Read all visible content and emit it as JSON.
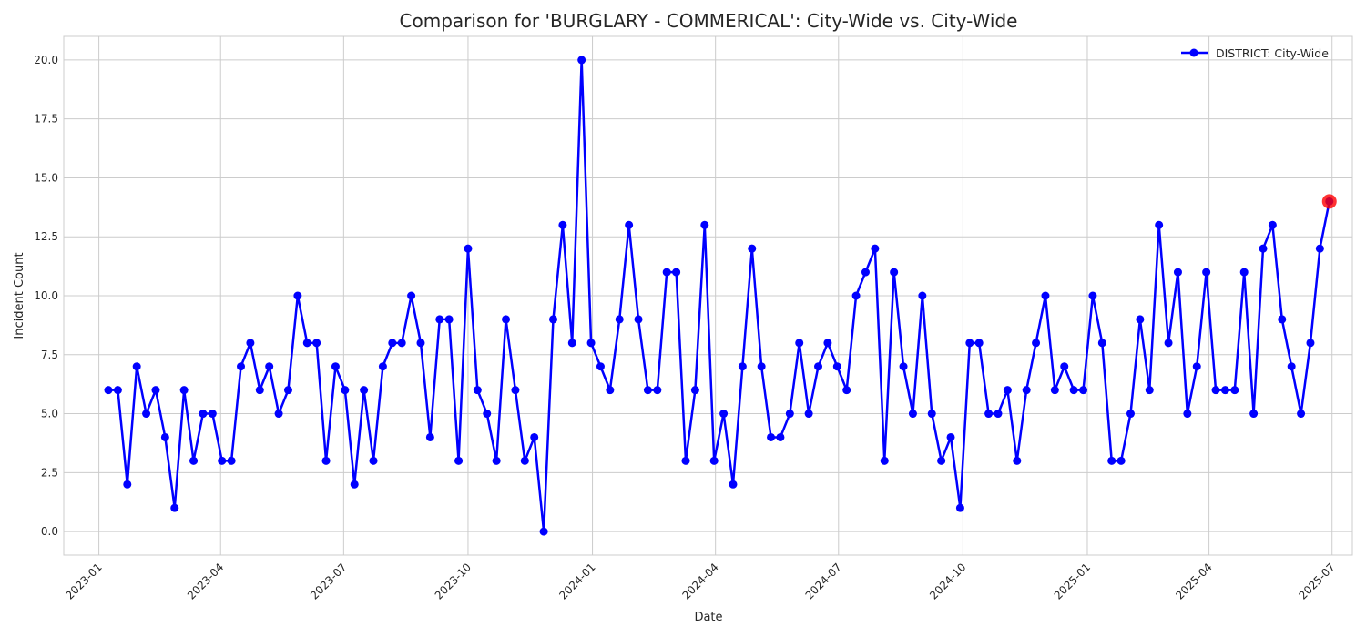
{
  "chart_data": {
    "type": "line",
    "title": "Comparison for 'BURGLARY - COMMERICAL': City-Wide vs. City-Wide",
    "xlabel": "Date",
    "ylabel": "Incident Count",
    "x_ticks": [
      "2023-01",
      "2023-04",
      "2023-07",
      "2023-10",
      "2024-01",
      "2024-04",
      "2024-07",
      "2024-10",
      "2025-01",
      "2025-04",
      "2025-07"
    ],
    "y_ticks": [
      "0.0",
      "2.5",
      "5.0",
      "7.5",
      "10.0",
      "12.5",
      "15.0",
      "17.5",
      "20.0"
    ],
    "ylim": [
      -1,
      21
    ],
    "xlim": [
      "2022-12-06",
      "2025-07-16"
    ],
    "grid": true,
    "legend": {
      "position": "top-right",
      "entries": [
        "DISTRICT: City-Wide"
      ]
    },
    "colors": {
      "line": "#0000ff",
      "highlight": "#ff0000",
      "grid": "#cccccc",
      "axes": "#cccccc"
    },
    "series": [
      {
        "name": "DISTRICT: City-Wide",
        "x": [
          "2023-01-08",
          "2023-01-15",
          "2023-01-22",
          "2023-01-29",
          "2023-02-05",
          "2023-02-12",
          "2023-02-19",
          "2023-02-26",
          "2023-03-05",
          "2023-03-12",
          "2023-03-19",
          "2023-03-26",
          "2023-04-02",
          "2023-04-09",
          "2023-04-16",
          "2023-04-23",
          "2023-04-30",
          "2023-05-07",
          "2023-05-14",
          "2023-05-21",
          "2023-05-28",
          "2023-06-04",
          "2023-06-11",
          "2023-06-18",
          "2023-06-25",
          "2023-07-02",
          "2023-07-09",
          "2023-07-16",
          "2023-07-23",
          "2023-07-30",
          "2023-08-06",
          "2023-08-13",
          "2023-08-20",
          "2023-08-27",
          "2023-09-03",
          "2023-09-10",
          "2023-09-17",
          "2023-09-24",
          "2023-10-01",
          "2023-10-08",
          "2023-10-15",
          "2023-10-22",
          "2023-10-29",
          "2023-11-05",
          "2023-11-12",
          "2023-11-19",
          "2023-11-26",
          "2023-12-03",
          "2023-12-10",
          "2023-12-17",
          "2023-12-24",
          "2023-12-31",
          "2024-01-07",
          "2024-01-14",
          "2024-01-21",
          "2024-01-28",
          "2024-02-04",
          "2024-02-11",
          "2024-02-18",
          "2024-02-25",
          "2024-03-03",
          "2024-03-10",
          "2024-03-17",
          "2024-03-24",
          "2024-03-31",
          "2024-04-07",
          "2024-04-14",
          "2024-04-21",
          "2024-04-28",
          "2024-05-05",
          "2024-05-12",
          "2024-05-19",
          "2024-05-26",
          "2024-06-02",
          "2024-06-09",
          "2024-06-16",
          "2024-06-23",
          "2024-06-30",
          "2024-07-07",
          "2024-07-14",
          "2024-07-21",
          "2024-07-28",
          "2024-08-04",
          "2024-08-11",
          "2024-08-18",
          "2024-08-25",
          "2024-09-01",
          "2024-09-08",
          "2024-09-15",
          "2024-09-22",
          "2024-09-29",
          "2024-10-06",
          "2024-10-13",
          "2024-10-20",
          "2024-10-27",
          "2024-11-03",
          "2024-11-10",
          "2024-11-17",
          "2024-11-24",
          "2024-12-01",
          "2024-12-08",
          "2024-12-15",
          "2024-12-22",
          "2024-12-29",
          "2025-01-05",
          "2025-01-12",
          "2025-01-19",
          "2025-01-26",
          "2025-02-02",
          "2025-02-09",
          "2025-02-16",
          "2025-02-23",
          "2025-03-02",
          "2025-03-09",
          "2025-03-16",
          "2025-03-23",
          "2025-03-30",
          "2025-04-06",
          "2025-04-13",
          "2025-04-20",
          "2025-04-27",
          "2025-05-04",
          "2025-05-11",
          "2025-05-18",
          "2025-05-25",
          "2025-06-01",
          "2025-06-08",
          "2025-06-15",
          "2025-06-22",
          "2025-06-29"
        ],
        "values": [
          6,
          6,
          2,
          7,
          5,
          6,
          4,
          1,
          6,
          3,
          5,
          5,
          3,
          3,
          7,
          8,
          6,
          7,
          5,
          6,
          10,
          8,
          8,
          3,
          7,
          6,
          2,
          6,
          3,
          7,
          8,
          8,
          10,
          8,
          4,
          9,
          9,
          3,
          12,
          6,
          5,
          3,
          9,
          6,
          3,
          4,
          0,
          9,
          13,
          8,
          20,
          8,
          7,
          6,
          9,
          13,
          9,
          6,
          6,
          11,
          11,
          3,
          6,
          13,
          3,
          5,
          2,
          7,
          12,
          7,
          4,
          4,
          5,
          8,
          5,
          7,
          8,
          7,
          6,
          10,
          11,
          12,
          3,
          11,
          7,
          5,
          10,
          5,
          3,
          4,
          1,
          8,
          8,
          5,
          5,
          6,
          3,
          6,
          8,
          10,
          6,
          7,
          6,
          6,
          10,
          8,
          3,
          3,
          5,
          9,
          6,
          13,
          8,
          11,
          5,
          7,
          11,
          6,
          6,
          6,
          11,
          5,
          12,
          13,
          9,
          7,
          5,
          8,
          12,
          14
        ]
      }
    ],
    "highlight_point": {
      "x": "2025-06-29",
      "y": 14
    }
  }
}
